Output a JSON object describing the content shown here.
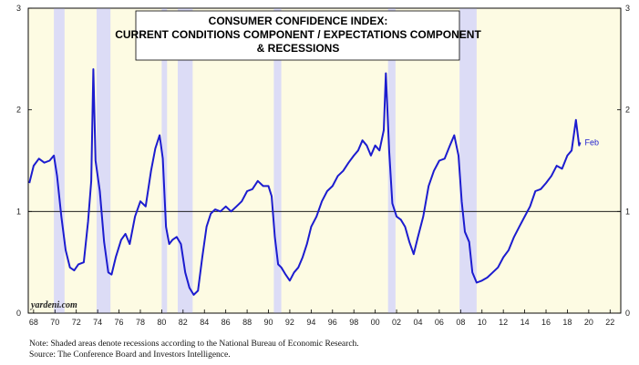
{
  "chart_data": {
    "type": "line",
    "title_lines": [
      "CONSUMER CONFIDENCE INDEX:",
      "CURRENT CONDITIONS COMPONENT / EXPECTATIONS COMPONENT",
      "& RECESSIONS"
    ],
    "watermark": "yardeni.com",
    "end_label": "Feb",
    "xlim": [
      1967.5,
      2023.0
    ],
    "ylim": [
      0,
      3
    ],
    "x_ticks": [
      1968,
      1970,
      1972,
      1974,
      1976,
      1978,
      1980,
      1982,
      1984,
      1986,
      1988,
      1990,
      1992,
      1994,
      1996,
      1998,
      2000,
      2002,
      2004,
      2006,
      2008,
      2010,
      2012,
      2014,
      2016,
      2018,
      2020,
      2022
    ],
    "x_tick_labels": [
      "68",
      "70",
      "72",
      "74",
      "76",
      "78",
      "80",
      "82",
      "84",
      "86",
      "88",
      "90",
      "92",
      "94",
      "96",
      "98",
      "00",
      "02",
      "04",
      "06",
      "08",
      "10",
      "12",
      "14",
      "16",
      "18",
      "20",
      "22"
    ],
    "y_ticks": [
      0,
      1,
      2,
      3
    ],
    "y_tick_labels": [
      "0",
      "1",
      "2",
      "3"
    ],
    "reference_line": 1,
    "recessions": [
      [
        1969.9,
        1970.9
      ],
      [
        1973.9,
        1975.2
      ],
      [
        1980.0,
        1980.5
      ],
      [
        1981.5,
        1982.9
      ],
      [
        1990.5,
        1991.2
      ],
      [
        2001.2,
        2001.9
      ],
      [
        2007.9,
        2009.5
      ]
    ],
    "series": [
      {
        "color": "#1c1ccf",
        "x": [
          1967.6,
          1968.0,
          1968.5,
          1969.0,
          1969.5,
          1969.9,
          1970.2,
          1970.6,
          1971.0,
          1971.4,
          1971.8,
          1972.2,
          1972.7,
          1973.1,
          1973.4,
          1973.6,
          1973.8,
          1974.2,
          1974.6,
          1975.0,
          1975.3,
          1975.7,
          1976.2,
          1976.6,
          1977.0,
          1977.5,
          1978.0,
          1978.5,
          1979.0,
          1979.4,
          1979.8,
          1980.1,
          1980.4,
          1980.7,
          1981.0,
          1981.4,
          1981.8,
          1982.2,
          1982.6,
          1983.0,
          1983.4,
          1983.8,
          1984.2,
          1984.6,
          1985.0,
          1985.5,
          1986.0,
          1986.5,
          1987.0,
          1987.5,
          1988.0,
          1988.5,
          1989.0,
          1989.5,
          1990.0,
          1990.3,
          1990.6,
          1990.9,
          1991.2,
          1991.6,
          1992.0,
          1992.4,
          1992.8,
          1993.2,
          1993.6,
          1994.0,
          1994.5,
          1995.0,
          1995.5,
          1996.0,
          1996.5,
          1997.0,
          1997.5,
          1998.0,
          1998.4,
          1998.8,
          1999.2,
          1999.6,
          2000.0,
          2000.4,
          2000.8,
          2001.0,
          2001.3,
          2001.6,
          2002.0,
          2002.4,
          2002.8,
          2003.2,
          2003.6,
          2004.0,
          2004.5,
          2005.0,
          2005.5,
          2006.0,
          2006.5,
          2007.0,
          2007.4,
          2007.8,
          2008.1,
          2008.4,
          2008.8,
          2009.1,
          2009.5,
          2010.0,
          2010.5,
          2011.0,
          2011.5,
          2012.0,
          2012.5,
          2013.0,
          2013.5,
          2014.0,
          2014.5,
          2015.0,
          2015.5,
          2016.0,
          2016.5,
          2017.0,
          2017.5,
          2018.0,
          2018.4,
          2018.8,
          2019.1,
          2019.2
        ],
        "y": [
          1.28,
          1.45,
          1.52,
          1.48,
          1.5,
          1.55,
          1.35,
          0.95,
          0.62,
          0.45,
          0.42,
          0.48,
          0.5,
          0.9,
          1.3,
          2.4,
          1.5,
          1.2,
          0.7,
          0.4,
          0.38,
          0.55,
          0.72,
          0.78,
          0.68,
          0.95,
          1.1,
          1.05,
          1.4,
          1.62,
          1.75,
          1.52,
          0.85,
          0.68,
          0.72,
          0.75,
          0.68,
          0.4,
          0.25,
          0.18,
          0.22,
          0.55,
          0.85,
          0.98,
          1.02,
          1.0,
          1.05,
          1.0,
          1.05,
          1.1,
          1.2,
          1.22,
          1.3,
          1.25,
          1.25,
          1.15,
          0.75,
          0.48,
          0.45,
          0.38,
          0.32,
          0.4,
          0.45,
          0.55,
          0.68,
          0.85,
          0.95,
          1.1,
          1.2,
          1.25,
          1.35,
          1.4,
          1.48,
          1.55,
          1.6,
          1.7,
          1.65,
          1.55,
          1.65,
          1.6,
          1.8,
          2.36,
          1.6,
          1.08,
          0.95,
          0.92,
          0.85,
          0.7,
          0.58,
          0.75,
          0.95,
          1.25,
          1.4,
          1.5,
          1.52,
          1.65,
          1.75,
          1.55,
          1.1,
          0.8,
          0.7,
          0.4,
          0.3,
          0.32,
          0.35,
          0.4,
          0.45,
          0.55,
          0.62,
          0.75,
          0.85,
          0.95,
          1.05,
          1.2,
          1.22,
          1.28,
          1.35,
          1.45,
          1.42,
          1.55,
          1.6,
          1.9,
          1.65,
          1.68
        ]
      }
    ]
  },
  "notes": {
    "line1": "Note: Shaded areas denote recessions according to the National Bureau of Economic Research.",
    "line2": "Source: The Conference Board and Investors Intelligence."
  },
  "colors": {
    "plot_background": "#fdfbe3",
    "recession_fill": "#dcdcf6",
    "line": "#1c1ccf"
  }
}
